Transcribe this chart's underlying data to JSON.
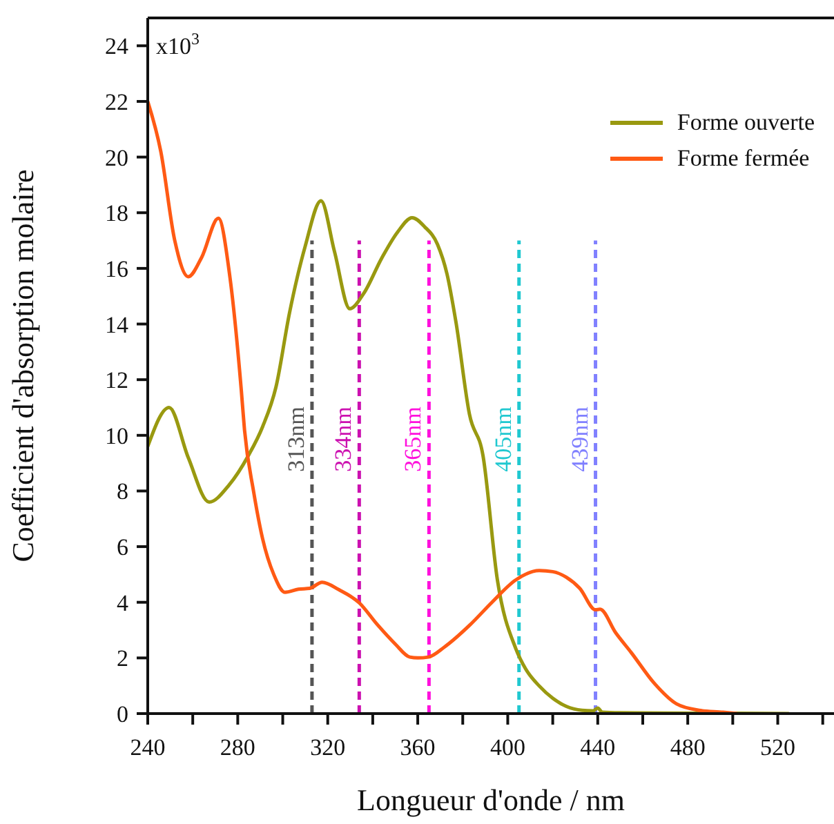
{
  "chart_data": {
    "type": "line",
    "xlabel": "Longueur d'onde / nm",
    "ylabel": "Coefficient d'absorption molaire",
    "xlim": [
      240,
      545
    ],
    "xticks": [
      240,
      {
        "value": 260,
        "label": null
      },
      280,
      {
        "value": 300,
        "label": null
      },
      320,
      {
        "value": 340,
        "label": null
      },
      360,
      {
        "value": 380,
        "label": null
      },
      400,
      {
        "value": 420,
        "label": null
      },
      440,
      {
        "value": 460,
        "label": null
      },
      480,
      {
        "value": 500,
        "label": null
      },
      520,
      {
        "value": 540,
        "label": null
      }
    ],
    "ylim": [
      0,
      25
    ],
    "yticks": [
      0,
      2,
      4,
      6,
      8,
      10,
      12,
      14,
      16,
      18,
      20,
      22,
      24
    ],
    "annotations": [
      "x10$^{3}$"
    ],
    "grid": false,
    "legend": "top right",
    "line_style": "solid",
    "marker": "none",
    "series": [
      {
        "name": "Forme ouverte",
        "color": "#999910",
        "x": [
          240,
          249.5,
          258,
          267.3,
          276,
          284.7,
          291,
          297,
          303,
          310,
          317,
          323,
          329.8,
          336,
          344,
          351,
          357.5,
          363,
          368.8,
          373,
          377,
          383,
          389,
          395.4,
          403.6,
          408,
          413.9,
          420,
          426,
          433,
          438,
          440,
          442,
          450,
          470,
          500,
          525
        ],
        "values": [
          9.6,
          11.0,
          9.2,
          7.6,
          8.2,
          9.27,
          10.3,
          11.74,
          14.4,
          16.8,
          18.43,
          16.6,
          14.55,
          15.1,
          16.37,
          17.3,
          17.82,
          17.5,
          16.86,
          15.8,
          14.06,
          10.75,
          9.27,
          4.8,
          2.33,
          1.6,
          1.0,
          0.55,
          0.26,
          0.12,
          0.1,
          0.2,
          0.05,
          0.03,
          0.02,
          0.01,
          0
        ]
      },
      {
        "name": "Forme fermée",
        "color": "#ff5a14",
        "x": [
          240,
          245.8,
          252,
          258,
          264,
          271.4,
          276.5,
          281.6,
          283,
          287,
          291,
          296,
          301,
          307,
          312,
          317.5,
          325,
          334,
          342,
          350,
          356.5,
          360,
          364.7,
          372,
          383,
          393,
          403.5,
          414,
          420,
          426,
          432,
          439,
          441,
          448,
          455,
          465,
          475,
          485,
          495.7,
          502
        ],
        "values": [
          22.0,
          20.2,
          17.0,
          15.7,
          16.4,
          17.8,
          15.7,
          11.6,
          10.2,
          8.0,
          6.3,
          5.0,
          4.36,
          4.47,
          4.5,
          4.72,
          4.45,
          3.98,
          3.2,
          2.5,
          2.03,
          2.0,
          2.03,
          2.4,
          3.17,
          4.0,
          4.8,
          5.14,
          5.1,
          4.9,
          4.5,
          3.73,
          3.75,
          2.9,
          2.18,
          1.1,
          0.35,
          0.12,
          0.05,
          0
        ]
      }
    ],
    "ref_lines": [
      {
        "axis": "x",
        "value": 313,
        "label": "313nm",
        "color": "#555555",
        "line_style": "dashed"
      },
      {
        "axis": "x",
        "value": 334,
        "label": "334nm",
        "color": "#cc10b0",
        "line_style": "dashed"
      },
      {
        "axis": "x",
        "value": 365,
        "label": "365nm",
        "color": "#ff10dd",
        "line_style": "dashed"
      },
      {
        "axis": "x",
        "value": 405,
        "label": "405nm",
        "color": "#20c8d0",
        "line_style": "dashed"
      },
      {
        "axis": "x",
        "value": 439,
        "label": "439nm",
        "color": "#8080ff",
        "line_style": "dashed"
      }
    ]
  }
}
